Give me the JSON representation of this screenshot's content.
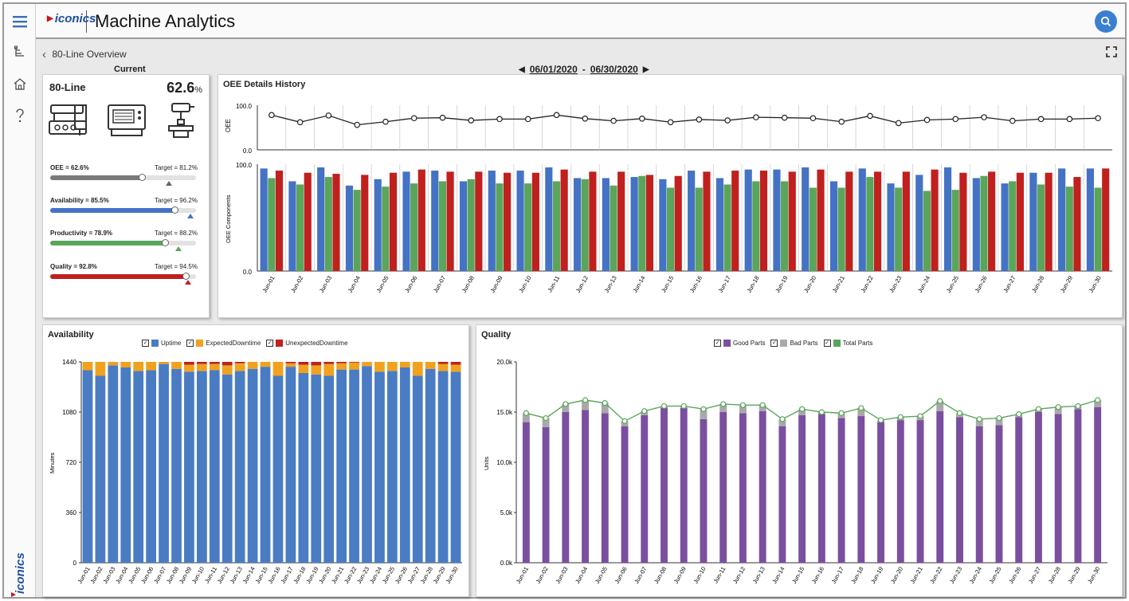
{
  "header": {
    "logo_text": "iconics",
    "title": "Machine Analytics",
    "user_icon": "search-icon"
  },
  "sidebar": {
    "items": [
      {
        "icon": "hamburger-icon"
      },
      {
        "icon": "hierarchy-icon"
      },
      {
        "icon": "home-icon"
      },
      {
        "icon": "help-icon"
      }
    ],
    "brand_text": "iconics"
  },
  "breadcrumb": {
    "back_label": "80-Line Overview"
  },
  "date_range": {
    "start": "06/01/2020",
    "sep": "-",
    "end": "06/30/2020"
  },
  "current": {
    "section_label": "Current",
    "line_name": "80-Line",
    "oee_value": "62.6",
    "oee_unit": "%",
    "kpis": [
      {
        "label": "OEE = 62.6%",
        "target": "Target = 81.2%",
        "value": 62.6,
        "target_value": 81.2,
        "color": "#7a7a7a"
      },
      {
        "label": "Availability = 85.5%",
        "target": "Target = 96.2%",
        "value": 85.5,
        "target_value": 96.2,
        "color": "#4472c4"
      },
      {
        "label": "Productivity = 78.9%",
        "target": "Target = 88.2%",
        "value": 78.9,
        "target_value": 88.2,
        "color": "#5aa55a"
      },
      {
        "label": "Quality = 92.8%",
        "target": "Target = 94.5%",
        "value": 92.8,
        "target_value": 94.5,
        "color": "#c0201e"
      }
    ]
  },
  "oee_panel": {
    "title": "OEE Details History"
  },
  "availability_panel": {
    "title": "Availability",
    "legend": [
      {
        "label": "Uptime",
        "color": "#4a7cc4"
      },
      {
        "label": "ExpectedDowntime",
        "color": "#f0a21e"
      },
      {
        "label": "UnexpectedDowntime",
        "color": "#c0201e"
      }
    ]
  },
  "quality_panel": {
    "title": "Quality",
    "legend": [
      {
        "label": "Good Parts",
        "color": "#7b4fa0"
      },
      {
        "label": "Bad Parts",
        "color": "#a9a9a9"
      },
      {
        "label": "Total Parts",
        "color": "#5aa55a"
      }
    ]
  },
  "chart_data": [
    {
      "type": "line",
      "ylabel": "OEE",
      "ylim": [
        0,
        100
      ],
      "yticks": [
        "0.0",
        "100.0"
      ],
      "categories": [
        "Jun-01",
        "Jun-02",
        "Jun-03",
        "Jun-04",
        "Jun-05",
        "Jun-06",
        "Jun-07",
        "Jun-08",
        "Jun-09",
        "Jun-10",
        "Jun-11",
        "Jun-12",
        "Jun-13",
        "Jun-14",
        "Jun-15",
        "Jun-16",
        "Jun-17",
        "Jun-18",
        "Jun-19",
        "Jun-20",
        "Jun-21",
        "Jun-22",
        "Jun-23",
        "Jun-24",
        "Jun-25",
        "Jun-26",
        "Jun-27",
        "Jun-28",
        "Jun-29",
        "Jun-30"
      ],
      "values": [
        78,
        62,
        77,
        56,
        63,
        71,
        72,
        66,
        69,
        69,
        78,
        70,
        65,
        70,
        62,
        68,
        66,
        73,
        72,
        71,
        63,
        76,
        60,
        67,
        69,
        73,
        65,
        69,
        69,
        71
      ]
    },
    {
      "type": "bar",
      "ylabel": "OEE Components",
      "ylim": [
        0,
        100
      ],
      "yticks": [
        "0.0",
        "100.0"
      ],
      "categories": [
        "Jun-01",
        "Jun-02",
        "Jun-03",
        "Jun-04",
        "Jun-05",
        "Jun-06",
        "Jun-07",
        "Jun-08",
        "Jun-09",
        "Jun-10",
        "Jun-11",
        "Jun-12",
        "Jun-13",
        "Jun-14",
        "Jun-15",
        "Jun-16",
        "Jun-17",
        "Jun-18",
        "Jun-19",
        "Jun-20",
        "Jun-21",
        "Jun-22",
        "Jun-23",
        "Jun-24",
        "Jun-25",
        "Jun-26",
        "Jun-27",
        "Jun-28",
        "Jun-29",
        "Jun-30"
      ],
      "series": [
        {
          "color": "#4472c4",
          "values": [
            96,
            84,
            97,
            80,
            86,
            93,
            94,
            84,
            94,
            94,
            97,
            87,
            87,
            88,
            86,
            94,
            87,
            95,
            95,
            97,
            84,
            96,
            82,
            90,
            97,
            87,
            82,
            92,
            96,
            96
          ]
        },
        {
          "color": "#5aa55a",
          "values": [
            87,
            81,
            88,
            76,
            79,
            82,
            84,
            86,
            82,
            82,
            84,
            86,
            80,
            89,
            78,
            78,
            81,
            84,
            84,
            78,
            78,
            88,
            78,
            75,
            76,
            89,
            84,
            81,
            79,
            78
          ]
        },
        {
          "color": "#c0201e",
          "values": [
            94,
            92,
            91,
            90,
            92,
            95,
            93,
            93,
            92,
            92,
            95,
            93,
            93,
            90,
            89,
            93,
            94,
            94,
            93,
            95,
            93,
            93,
            93,
            95,
            92,
            93,
            92,
            92,
            88,
            96
          ]
        }
      ]
    },
    {
      "type": "bar",
      "title": "Availability",
      "ylabel": "Minutes",
      "ylim": [
        0,
        1440
      ],
      "yticks": [
        "0",
        "360",
        "720",
        "1080",
        "1440"
      ],
      "categories": [
        "Jun-01",
        "Jun-02",
        "Jun-03",
        "Jun-04",
        "Jun-05",
        "Jun-06",
        "Jun-07",
        "Jun-08",
        "Jun-09",
        "Jun-10",
        "Jun-11",
        "Jun-12",
        "Jun-13",
        "Jun-14",
        "Jun-15",
        "Jun-16",
        "Jun-17",
        "Jun-18",
        "Jun-19",
        "Jun-20",
        "Jun-21",
        "Jun-22",
        "Jun-23",
        "Jun-24",
        "Jun-25",
        "Jun-26",
        "Jun-27",
        "Jun-28",
        "Jun-29",
        "Jun-30"
      ],
      "series": [
        {
          "name": "Uptime",
          "color": "#4a7cc4",
          "values": [
            1380,
            1340,
            1415,
            1400,
            1375,
            1380,
            1425,
            1390,
            1370,
            1375,
            1380,
            1350,
            1375,
            1390,
            1405,
            1340,
            1405,
            1360,
            1350,
            1340,
            1385,
            1385,
            1410,
            1370,
            1375,
            1400,
            1340,
            1390,
            1375,
            1370
          ]
        },
        {
          "name": "ExpectedDowntime",
          "color": "#f0a21e",
          "values": [
            60,
            100,
            25,
            40,
            65,
            60,
            15,
            50,
            50,
            50,
            45,
            65,
            55,
            50,
            35,
            100,
            25,
            60,
            65,
            85,
            45,
            50,
            30,
            70,
            65,
            40,
            100,
            50,
            50,
            50
          ]
        },
        {
          "name": "UnexpectedDowntime",
          "color": "#c0201e",
          "values": [
            0,
            0,
            0,
            0,
            0,
            0,
            0,
            0,
            20,
            15,
            15,
            25,
            10,
            0,
            0,
            0,
            10,
            20,
            25,
            15,
            10,
            5,
            0,
            0,
            0,
            0,
            0,
            0,
            15,
            20
          ]
        }
      ]
    },
    {
      "type": "bar",
      "title": "Quality",
      "ylabel": "Units",
      "ylim": [
        0,
        20000
      ],
      "yticks": [
        "0.0k",
        "5.0k",
        "10.0k",
        "15.0k",
        "20.0k"
      ],
      "categories": [
        "Jun-01",
        "Jun-02",
        "Jun-03",
        "Jun-04",
        "Jun-05",
        "Jun-06",
        "Jun-07",
        "Jun-08",
        "Jun-09",
        "Jun-10",
        "Jun-11",
        "Jun-12",
        "Jun-13",
        "Jun-14",
        "Jun-15",
        "Jun-16",
        "Jun-17",
        "Jun-18",
        "Jun-19",
        "Jun-20",
        "Jun-21",
        "Jun-22",
        "Jun-23",
        "Jun-24",
        "Jun-25",
        "Jun-26",
        "Jun-27",
        "Jun-28",
        "Jun-29",
        "Jun-30"
      ],
      "series": [
        {
          "name": "Good Parts",
          "color": "#7b4fa0",
          "values": [
            14000,
            13500,
            15000,
            15200,
            14900,
            13600,
            14700,
            15400,
            15400,
            14300,
            15000,
            14900,
            15100,
            13600,
            14700,
            14800,
            14400,
            14600,
            14000,
            14200,
            14200,
            15100,
            14500,
            13600,
            13700,
            14500,
            15000,
            14800,
            15300,
            15500
          ]
        },
        {
          "name": "Bad Parts",
          "color": "#a9a9a9",
          "values": [
            900,
            900,
            800,
            1000,
            1000,
            500,
            400,
            200,
            200,
            1000,
            800,
            800,
            600,
            700,
            600,
            200,
            500,
            800,
            200,
            300,
            400,
            1000,
            400,
            700,
            700,
            300,
            300,
            700,
            300,
            700
          ]
        },
        {
          "name": "Total Parts",
          "color": "#5aa55a",
          "values": [
            14900,
            14400,
            15800,
            16200,
            15900,
            14100,
            15100,
            15600,
            15600,
            15300,
            15800,
            15700,
            15700,
            14300,
            15300,
            15000,
            14900,
            15400,
            14200,
            14500,
            14600,
            16100,
            14900,
            14300,
            14400,
            14800,
            15300,
            15500,
            15600,
            16200
          ]
        }
      ]
    }
  ]
}
